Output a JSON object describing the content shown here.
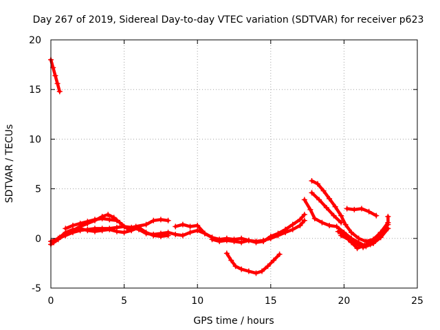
{
  "chart_data": {
    "type": "scatter",
    "title": "Day 267 of 2019, Sidereal Day-to-day VTEC variation (SDTVAR) for receiver p623",
    "xlabel": "GPS time / hours",
    "ylabel": "SDTVAR / TECUs",
    "xlim": [
      0,
      25
    ],
    "ylim": [
      -5,
      20
    ],
    "x_ticks": [
      0,
      5,
      10,
      15,
      20,
      25
    ],
    "y_ticks": [
      -5,
      0,
      5,
      10,
      15,
      20
    ],
    "x_tick_labels": [
      "0",
      "5",
      "10",
      "15",
      "20",
      "25"
    ],
    "y_tick_labels": [
      "-5",
      "0",
      "5",
      "10",
      "15",
      "20"
    ],
    "grid": true,
    "marker": "+",
    "marker_color": "#ff0000",
    "series": [
      {
        "name": "track-1",
        "points": [
          [
            0.0,
            18.0
          ],
          [
            0.15,
            17.2
          ],
          [
            0.3,
            16.4
          ],
          [
            0.45,
            15.6
          ],
          [
            0.6,
            14.8
          ]
        ]
      },
      {
        "name": "track-2",
        "points": [
          [
            0.0,
            -0.6
          ],
          [
            0.5,
            -0.1
          ],
          [
            1.0,
            0.4
          ],
          [
            1.5,
            0.8
          ],
          [
            2.0,
            1.2
          ],
          [
            2.5,
            1.5
          ],
          [
            3.0,
            1.8
          ],
          [
            3.5,
            2.2
          ],
          [
            3.9,
            2.4
          ],
          [
            4.3,
            2.1
          ],
          [
            4.7,
            1.6
          ],
          [
            5.2,
            1.0
          ],
          [
            5.8,
            1.2
          ],
          [
            6.5,
            1.4
          ],
          [
            7.0,
            1.8
          ],
          [
            7.5,
            1.9
          ],
          [
            8.0,
            1.8
          ]
        ]
      },
      {
        "name": "track-3",
        "points": [
          [
            0.0,
            -0.3
          ],
          [
            0.5,
            0.0
          ],
          [
            1.0,
            0.3
          ],
          [
            1.5,
            0.6
          ],
          [
            2.0,
            0.8
          ],
          [
            2.5,
            0.9
          ],
          [
            3.0,
            1.0
          ],
          [
            3.5,
            1.0
          ],
          [
            4.0,
            1.0
          ],
          [
            4.5,
            1.1
          ],
          [
            5.0,
            1.2
          ],
          [
            5.5,
            1.1
          ],
          [
            6.0,
            0.9
          ],
          [
            6.5,
            0.5
          ],
          [
            7.0,
            0.4
          ],
          [
            7.5,
            0.5
          ],
          [
            8.0,
            0.6
          ],
          [
            8.5,
            0.4
          ],
          [
            9.0,
            0.3
          ],
          [
            9.5,
            0.6
          ],
          [
            10.0,
            0.8
          ],
          [
            10.5,
            0.5
          ],
          [
            11.0,
            0.1
          ]
        ]
      },
      {
        "name": "track-4",
        "points": [
          [
            0.2,
            -0.4
          ],
          [
            0.6,
            0.1
          ],
          [
            1.0,
            0.6
          ],
          [
            1.5,
            0.9
          ],
          [
            2.0,
            1.0
          ],
          [
            2.5,
            0.8
          ],
          [
            3.0,
            0.7
          ],
          [
            3.5,
            0.8
          ],
          [
            4.0,
            0.9
          ],
          [
            4.5,
            0.7
          ],
          [
            5.0,
            0.6
          ],
          [
            5.5,
            0.8
          ],
          [
            6.0,
            1.1
          ],
          [
            6.5,
            0.6
          ],
          [
            7.0,
            0.3
          ],
          [
            7.5,
            0.2
          ],
          [
            8.0,
            0.3
          ]
        ]
      },
      {
        "name": "track-5",
        "points": [
          [
            1.0,
            1.0
          ],
          [
            1.5,
            1.3
          ],
          [
            2.0,
            1.5
          ],
          [
            2.5,
            1.7
          ],
          [
            3.0,
            1.9
          ],
          [
            3.5,
            2.0
          ],
          [
            4.0,
            1.9
          ],
          [
            4.5,
            1.8
          ]
        ]
      },
      {
        "name": "track-6",
        "points": [
          [
            8.5,
            1.2
          ],
          [
            9.0,
            1.4
          ],
          [
            9.5,
            1.2
          ],
          [
            10.0,
            1.3
          ],
          [
            10.5,
            0.5
          ],
          [
            11.0,
            0.1
          ],
          [
            11.5,
            -0.1
          ],
          [
            12.0,
            0.0
          ],
          [
            12.5,
            -0.1
          ],
          [
            13.0,
            0.0
          ],
          [
            13.5,
            -0.2
          ],
          [
            14.0,
            -0.3
          ],
          [
            14.5,
            -0.2
          ],
          [
            15.0,
            0.0
          ],
          [
            15.5,
            0.3
          ],
          [
            16.0,
            0.6
          ],
          [
            16.5,
            0.9
          ],
          [
            17.0,
            1.3
          ],
          [
            17.3,
            1.8
          ]
        ]
      },
      {
        "name": "track-7",
        "points": [
          [
            11.0,
            -0.1
          ],
          [
            11.5,
            -0.3
          ],
          [
            12.0,
            -0.2
          ],
          [
            12.5,
            -0.3
          ],
          [
            13.0,
            -0.4
          ],
          [
            13.5,
            -0.2
          ],
          [
            14.0,
            -0.4
          ],
          [
            14.5,
            -0.3
          ],
          [
            15.0,
            0.2
          ],
          [
            15.5,
            0.5
          ],
          [
            16.0,
            0.9
          ],
          [
            16.5,
            1.4
          ],
          [
            17.0,
            1.9
          ],
          [
            17.3,
            2.4
          ]
        ]
      },
      {
        "name": "track-8",
        "points": [
          [
            12.0,
            -1.5
          ],
          [
            12.3,
            -2.2
          ],
          [
            12.6,
            -2.8
          ],
          [
            13.0,
            -3.1
          ],
          [
            13.5,
            -3.3
          ],
          [
            14.0,
            -3.5
          ],
          [
            14.4,
            -3.3
          ],
          [
            14.8,
            -2.8
          ],
          [
            15.2,
            -2.2
          ],
          [
            15.6,
            -1.6
          ]
        ]
      },
      {
        "name": "track-9",
        "points": [
          [
            17.3,
            3.9
          ],
          [
            17.7,
            2.9
          ],
          [
            18.0,
            2.0
          ],
          [
            18.5,
            1.6
          ],
          [
            19.0,
            1.3
          ],
          [
            19.5,
            1.2
          ],
          [
            20.0,
            0.6
          ],
          [
            20.5,
            0.0
          ],
          [
            21.0,
            -0.4
          ],
          [
            21.5,
            -0.8
          ],
          [
            22.0,
            -0.5
          ],
          [
            22.5,
            0.1
          ],
          [
            23.0,
            1.0
          ]
        ]
      },
      {
        "name": "track-10",
        "points": [
          [
            17.8,
            5.8
          ],
          [
            18.2,
            5.5
          ],
          [
            18.6,
            4.8
          ],
          [
            19.0,
            4.0
          ],
          [
            19.4,
            3.2
          ],
          [
            19.8,
            2.3
          ],
          [
            20.1,
            1.4
          ],
          [
            20.5,
            0.6
          ],
          [
            21.0,
            0.0
          ],
          [
            21.5,
            -0.3
          ],
          [
            22.0,
            -0.1
          ],
          [
            22.5,
            0.6
          ],
          [
            23.0,
            1.4
          ]
        ]
      },
      {
        "name": "track-11",
        "points": [
          [
            17.8,
            4.6
          ],
          [
            18.3,
            3.9
          ],
          [
            18.8,
            3.1
          ],
          [
            19.3,
            2.3
          ],
          [
            19.8,
            1.6
          ]
        ]
      },
      {
        "name": "track-12",
        "points": [
          [
            19.6,
            0.7
          ],
          [
            20.0,
            0.3
          ],
          [
            20.5,
            -0.4
          ],
          [
            20.9,
            -1.0
          ],
          [
            21.4,
            -0.7
          ],
          [
            22.0,
            -0.2
          ],
          [
            22.5,
            0.6
          ],
          [
            23.0,
            1.6
          ],
          [
            23.0,
            2.2
          ]
        ]
      },
      {
        "name": "track-13",
        "points": [
          [
            20.2,
            3.0
          ],
          [
            20.7,
            2.9
          ],
          [
            21.2,
            3.0
          ],
          [
            21.7,
            2.7
          ],
          [
            22.2,
            2.3
          ]
        ]
      },
      {
        "name": "track-14",
        "points": [
          [
            19.8,
            0.3
          ],
          [
            20.3,
            -0.1
          ],
          [
            20.8,
            -0.5
          ],
          [
            21.3,
            -0.9
          ],
          [
            21.8,
            -0.6
          ],
          [
            22.3,
            0.1
          ],
          [
            22.8,
            0.9
          ]
        ]
      }
    ]
  }
}
